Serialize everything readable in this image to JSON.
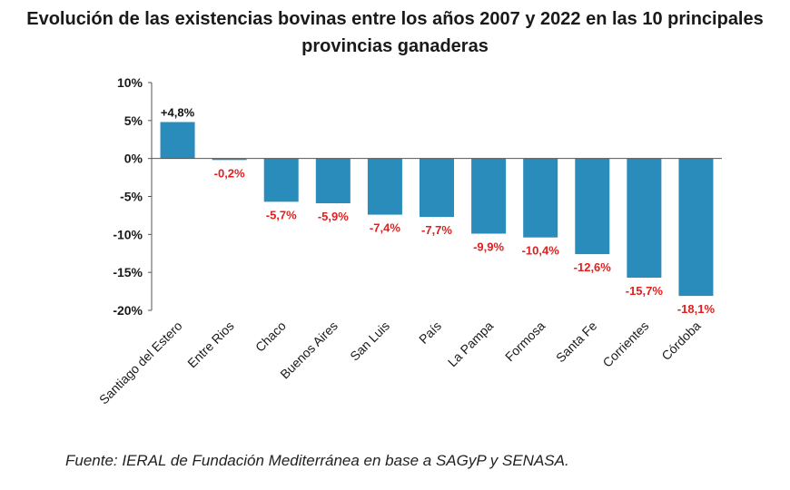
{
  "chart_data": {
    "type": "bar",
    "title_lines": [
      "Evolución de las existencias bovinas entre los años 2007 y 2022 en las 10 principales",
      "provincias ganaderas"
    ],
    "categories": [
      "Santiago del Estero",
      "Entre Rios",
      "Chaco",
      "Buenos Aires",
      "San Luis",
      "País",
      "La Pampa",
      "Formosa",
      "Santa Fe",
      "Corrientes",
      "Córdoba"
    ],
    "values": [
      4.8,
      -0.2,
      -5.7,
      -5.9,
      -7.4,
      -7.7,
      -9.9,
      -10.4,
      -12.6,
      -15.7,
      -18.1
    ],
    "data_labels": [
      "+4,8%",
      "-0,2%",
      "-5,7%",
      "-5,9%",
      "-7,4%",
      "-7,7%",
      "-9,9%",
      "-10,4%",
      "-12,6%",
      "-15,7%",
      "-18,1%"
    ],
    "yticks": [
      10,
      5,
      0,
      -5,
      -10,
      -15,
      -20
    ],
    "ytick_labels": [
      "10%",
      "5%",
      "0%",
      "-5%",
      "-10%",
      "-15%",
      "-20%"
    ],
    "ylim": [
      -20,
      10
    ],
    "xlabel": "",
    "ylabel": "",
    "grid": false,
    "bar_color": "#2a8cba",
    "positive_label_color": "#111111",
    "negative_label_color": "#e02020"
  },
  "source": "Fuente: IERAL de Fundación Mediterránea en base a SAGyP y SENASA."
}
